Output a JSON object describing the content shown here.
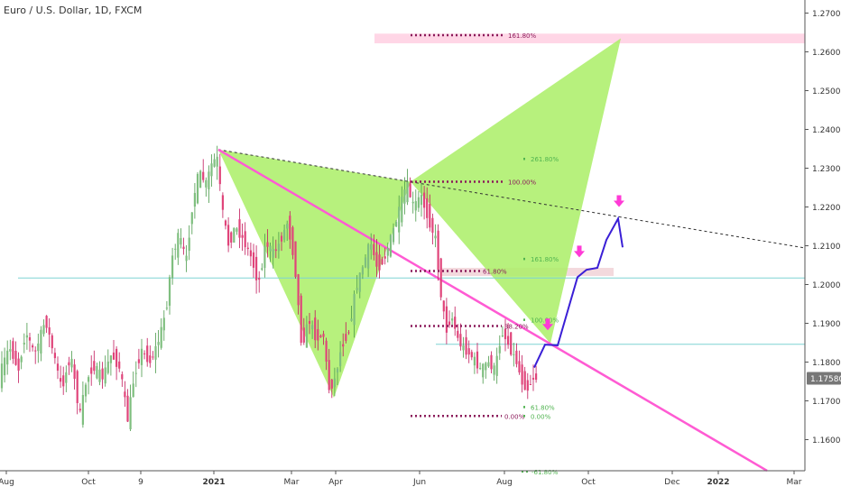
{
  "symbol_title": "Euro / U.S. Dollar, 1D, FXCM",
  "chart_data": {
    "type": "candlestick",
    "title": "Euro / U.S. Dollar, 1D, FXCM",
    "ylim": [
      1.153,
      1.272
    ],
    "x_ticks": [
      "Aug",
      "Oct",
      "9",
      "2021",
      "Mar",
      "Apr",
      "Jun",
      "Aug",
      "Oct",
      "Dec",
      "2022",
      "Mar"
    ],
    "y_ticks": [
      "1.27000",
      "1.26000",
      "1.25000",
      "1.24000",
      "1.23000",
      "1.22000",
      "1.21000",
      "1.20000",
      "1.19000",
      "1.18000",
      "1.17000",
      "1.16000"
    ],
    "last_price": "1.17580",
    "candle_path": [
      [
        0,
        1.176
      ],
      [
        12,
        1.184
      ],
      [
        22,
        1.178
      ],
      [
        30,
        1.188
      ],
      [
        40,
        1.182
      ],
      [
        52,
        1.191
      ],
      [
        62,
        1.181
      ],
      [
        70,
        1.173
      ],
      [
        80,
        1.182
      ],
      [
        90,
        1.166
      ],
      [
        97,
        1.175
      ],
      [
        105,
        1.179
      ],
      [
        115,
        1.176
      ],
      [
        125,
        1.182
      ],
      [
        135,
        1.178
      ],
      [
        143,
        1.165
      ],
      [
        150,
        1.176
      ],
      [
        158,
        1.183
      ],
      [
        168,
        1.18
      ],
      [
        178,
        1.186
      ],
      [
        186,
        1.194
      ],
      [
        192,
        1.207
      ],
      [
        200,
        1.213
      ],
      [
        208,
        1.206
      ],
      [
        215,
        1.221
      ],
      [
        222,
        1.229
      ],
      [
        230,
        1.226
      ],
      [
        236,
        1.231
      ],
      [
        242,
        1.233
      ],
      [
        248,
        1.219
      ],
      [
        255,
        1.21
      ],
      [
        262,
        1.215
      ],
      [
        270,
        1.212
      ],
      [
        280,
        1.207
      ],
      [
        288,
        1.2
      ],
      [
        296,
        1.211
      ],
      [
        305,
        1.208
      ],
      [
        312,
        1.211
      ],
      [
        320,
        1.216
      ],
      [
        328,
        1.206
      ],
      [
        336,
        1.184
      ],
      [
        344,
        1.191
      ],
      [
        352,
        1.186
      ],
      [
        360,
        1.187
      ],
      [
        366,
        1.173
      ],
      [
        372,
        1.175
      ],
      [
        380,
        1.184
      ],
      [
        388,
        1.188
      ],
      [
        396,
        1.199
      ],
      [
        404,
        1.205
      ],
      [
        412,
        1.211
      ],
      [
        420,
        1.204
      ],
      [
        428,
        1.207
      ],
      [
        436,
        1.213
      ],
      [
        444,
        1.219
      ],
      [
        452,
        1.226
      ],
      [
        460,
        1.22
      ],
      [
        468,
        1.223
      ],
      [
        476,
        1.217
      ],
      [
        484,
        1.212
      ],
      [
        490,
        1.198
      ],
      [
        496,
        1.188
      ],
      [
        502,
        1.192
      ],
      [
        510,
        1.185
      ],
      [
        518,
        1.183
      ],
      [
        526,
        1.181
      ],
      [
        534,
        1.178
      ],
      [
        542,
        1.18
      ],
      [
        550,
        1.178
      ],
      [
        558,
        1.188
      ],
      [
        566,
        1.184
      ],
      [
        574,
        1.18
      ],
      [
        580,
        1.175
      ],
      [
        586,
        1.173
      ],
      [
        592,
        1.176
      ],
      [
        598,
        1.1758
      ]
    ],
    "horizontal_lines": [
      {
        "price": 1.2017,
        "color": "#7ed3d3"
      },
      {
        "price": 1.1846,
        "color": "#7ed3d3"
      }
    ],
    "descending_trendline": {
      "from": [
        242,
        1.2348
      ],
      "to": [
        850,
        1.152
      ],
      "color": "#ff5bd3"
    },
    "dashed_trendline": {
      "from": [
        242,
        1.2348
      ],
      "to": [
        890,
        1.2095
      ],
      "color": "#333333"
    },
    "harmonic_pattern": {
      "color": "#aaee66",
      "points": [
        [
          242,
          1.2348
        ],
        [
          370,
          1.1708
        ],
        [
          455,
          1.2265
        ],
        [
          610,
          1.1848
        ],
        [
          688,
          1.2635
        ]
      ]
    },
    "fib_levels": [
      {
        "label": "161.80%",
        "price": 1.2643,
        "color": "#8b1a5a",
        "x1": 455,
        "x2": 560
      },
      {
        "label": "261.80%",
        "price": 1.2324,
        "color": "#4fb34f",
        "x1": 580,
        "x2": 585
      },
      {
        "label": "100.00%",
        "price": 1.2265,
        "color": "#8b1a5a",
        "x1": 455,
        "x2": 560
      },
      {
        "label": "161.80%",
        "price": 1.2066,
        "color": "#4fb34f",
        "x1": 580,
        "x2": 585
      },
      {
        "label": "61.80%",
        "price": 1.2035,
        "color": "#8b1a5a",
        "x1": 455,
        "x2": 532
      },
      {
        "label": "100.00%",
        "price": 1.1909,
        "color": "#4fb34f",
        "x1": 580,
        "x2": 585
      },
      {
        "label": "38.20%",
        "price": 1.1893,
        "color": "#8b1a5a",
        "x1": 455,
        "x2": 556
      },
      {
        "label": "0.00%",
        "price": 1.1661,
        "color": "#8b1a5a",
        "x1": 455,
        "x2": 556
      },
      {
        "label": "0.00%",
        "price": 1.1661,
        "color": "#4fb34f",
        "x1": 580,
        "x2": 585
      },
      {
        "label": "61.80%",
        "price": 1.1684,
        "color": "#4fb34f",
        "x1": 580,
        "x2": 585
      },
      {
        "label": "-61.80%",
        "price": 1.1518,
        "color": "#4fb34f",
        "x1": 578,
        "x2": 586
      }
    ],
    "highlight_zones": [
      {
        "price_top": 1.2647,
        "price_bottom": 1.2622,
        "x1": 415,
        "x2": 892,
        "color": "#ffd6e6"
      },
      {
        "price_top": 1.2043,
        "price_bottom": 1.2022,
        "x1": 488,
        "x2": 680,
        "color": "#f3d9dd"
      }
    ],
    "projection_path": {
      "color": "#3a1fd6",
      "points": [
        [
          592,
          1.1786
        ],
        [
          604,
          1.1845
        ],
        [
          618,
          1.1843
        ],
        [
          640,
          1.2019
        ],
        [
          650,
          1.2038
        ],
        [
          662,
          1.2043
        ],
        [
          672,
          1.2115
        ],
        [
          685,
          1.217
        ],
        [
          690,
          1.2096
        ]
      ]
    },
    "target_arrows": [
      {
        "x": 607,
        "price": 1.1882,
        "color": "#ff3ad6"
      },
      {
        "x": 642,
        "price": 1.207,
        "color": "#ff3ad6"
      },
      {
        "x": 686,
        "price": 1.22,
        "color": "#ff3ad6"
      }
    ]
  }
}
